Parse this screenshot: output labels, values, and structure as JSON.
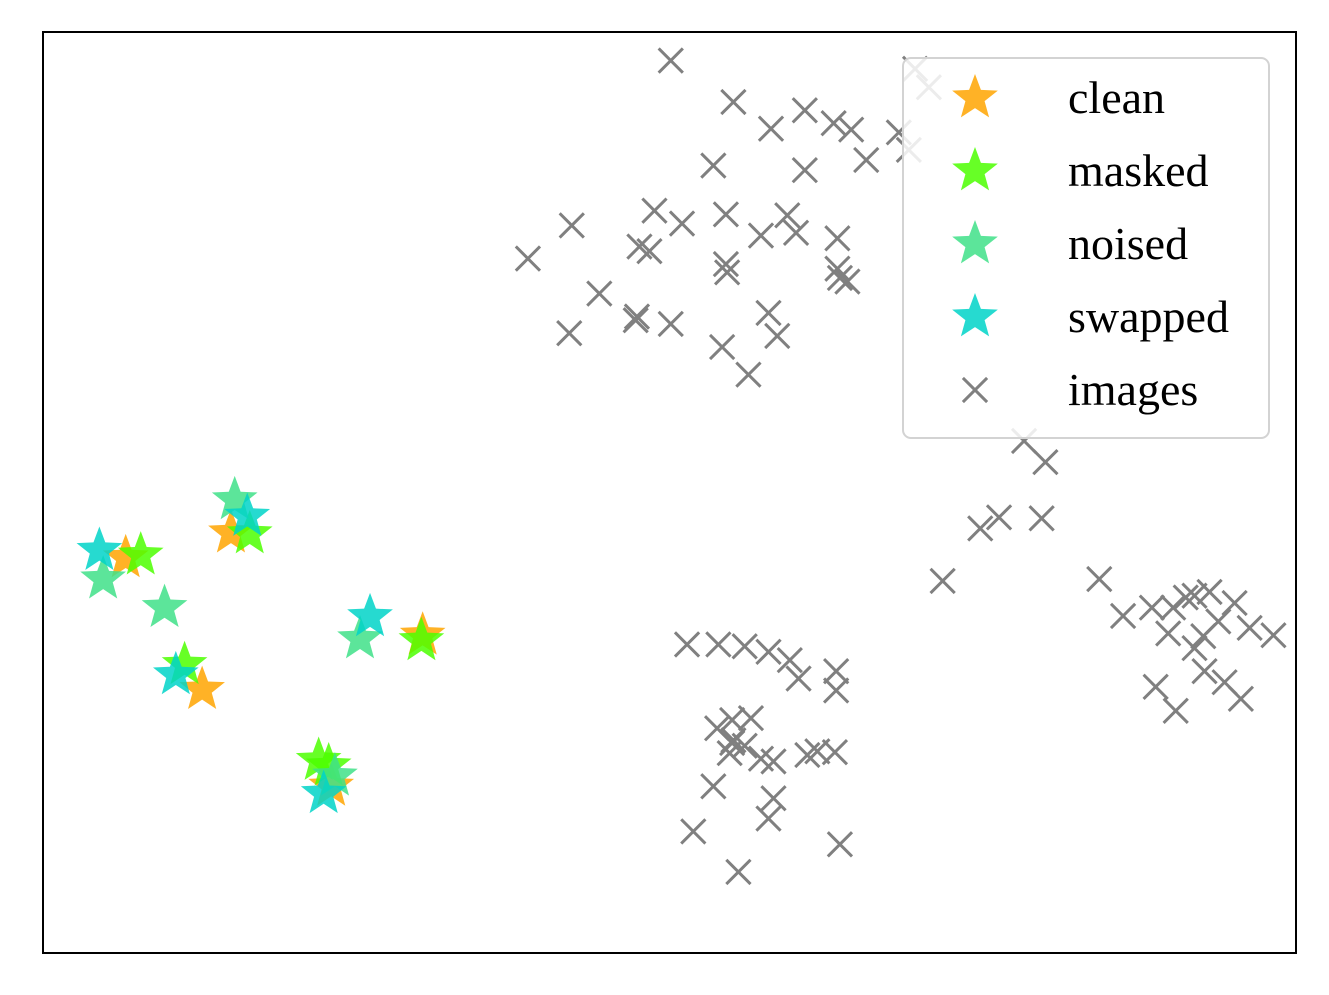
{
  "chart_data": {
    "type": "scatter",
    "title": "",
    "xlabel": "",
    "ylabel": "",
    "xlim": [
      0,
      100
    ],
    "ylim": [
      0,
      100
    ],
    "grid": false,
    "axes_ticks": false,
    "legend": {
      "placement": "top-right"
    },
    "series": [
      {
        "name": "clean",
        "marker": "star",
        "color": "#FFA500",
        "points": [
          [
            6.6,
            42.9
          ],
          [
            15.0,
            45.6
          ],
          [
            12.7,
            28.6
          ],
          [
            30.3,
            34.5
          ],
          [
            23.0,
            18.1
          ]
        ]
      },
      {
        "name": "masked",
        "marker": "star",
        "color": "#4CFF00",
        "points": [
          [
            7.8,
            43.2
          ],
          [
            16.5,
            45.5
          ],
          [
            11.3,
            31.3
          ],
          [
            30.2,
            33.9
          ],
          [
            22.0,
            20.9
          ],
          [
            22.8,
            20.3
          ]
        ]
      },
      {
        "name": "noised",
        "marker": "star",
        "color": "#40E088",
        "points": [
          [
            4.8,
            40.6
          ],
          [
            9.7,
            37.5
          ],
          [
            15.3,
            49.2
          ],
          [
            25.3,
            34.1
          ],
          [
            23.3,
            19.2
          ]
        ]
      },
      {
        "name": "swapped",
        "marker": "star",
        "color": "#00D4C8",
        "points": [
          [
            4.5,
            43.7
          ],
          [
            16.3,
            47.4
          ],
          [
            10.6,
            30.2
          ],
          [
            26.1,
            36.5
          ],
          [
            22.4,
            17.3
          ]
        ]
      },
      {
        "name": "images",
        "marker": "x",
        "color": "#808080",
        "points": [
          [
            50.1,
            96.9
          ],
          [
            55.1,
            92.4
          ],
          [
            58.1,
            89.5
          ],
          [
            60.8,
            91.5
          ],
          [
            60.8,
            85.0
          ],
          [
            69.1,
            87.2
          ],
          [
            68.3,
            89.1
          ],
          [
            65.7,
            86.1
          ],
          [
            53.5,
            85.5
          ],
          [
            48.8,
            80.6
          ],
          [
            47.6,
            76.7
          ],
          [
            42.2,
            79.0
          ],
          [
            48.4,
            76.2
          ],
          [
            44.4,
            71.6
          ],
          [
            38.7,
            75.4
          ],
          [
            42.0,
            67.3
          ],
          [
            47.3,
            68.7
          ],
          [
            51.0,
            79.2
          ],
          [
            54.5,
            74.8
          ],
          [
            57.3,
            77.9
          ],
          [
            54.6,
            73.9
          ],
          [
            47.4,
            69.1
          ],
          [
            54.5,
            80.2
          ],
          [
            59.4,
            80.1
          ],
          [
            57.9,
            69.5
          ],
          [
            56.3,
            62.8
          ],
          [
            58.6,
            67.0
          ],
          [
            54.2,
            65.8
          ],
          [
            50.1,
            68.3
          ],
          [
            60.1,
            78.2
          ],
          [
            63.4,
            77.6
          ],
          [
            63.4,
            74.3
          ],
          [
            63.6,
            73.3
          ],
          [
            64.2,
            72.9
          ],
          [
            80.0,
            53.3
          ],
          [
            78.3,
            55.6
          ],
          [
            74.8,
            46.1
          ],
          [
            76.3,
            47.3
          ],
          [
            79.7,
            47.2
          ],
          [
            71.8,
            40.4
          ],
          [
            84.3,
            40.6
          ],
          [
            86.2,
            36.6
          ],
          [
            88.5,
            37.5
          ],
          [
            90.2,
            37.5
          ],
          [
            91.9,
            38.8
          ],
          [
            91.2,
            38.6
          ],
          [
            93.1,
            39.2
          ],
          [
            89.8,
            34.7
          ],
          [
            91.9,
            33.1
          ],
          [
            95.1,
            38.0
          ],
          [
            92.6,
            34.4
          ],
          [
            93.8,
            36.0
          ],
          [
            96.3,
            35.3
          ],
          [
            98.2,
            34.5
          ],
          [
            92.7,
            30.6
          ],
          [
            88.8,
            28.9
          ],
          [
            90.4,
            26.3
          ],
          [
            94.3,
            29.4
          ],
          [
            95.6,
            27.6
          ],
          [
            51.4,
            33.5
          ],
          [
            53.9,
            33.5
          ],
          [
            56.0,
            33.3
          ],
          [
            57.9,
            32.7
          ],
          [
            59.6,
            31.8
          ],
          [
            60.3,
            29.8
          ],
          [
            63.3,
            30.6
          ],
          [
            63.3,
            28.5
          ],
          [
            53.8,
            24.4
          ],
          [
            55.0,
            25.3
          ],
          [
            55.1,
            23.1
          ],
          [
            56.5,
            25.5
          ],
          [
            55.0,
            22.8
          ],
          [
            56.0,
            22.5
          ],
          [
            54.8,
            21.7
          ],
          [
            57.3,
            21.1
          ],
          [
            61.8,
            21.9
          ],
          [
            61.0,
            21.5
          ],
          [
            63.2,
            21.8
          ],
          [
            58.3,
            20.8
          ],
          [
            53.5,
            18.1
          ],
          [
            58.3,
            16.8
          ],
          [
            51.9,
            13.2
          ],
          [
            57.9,
            14.6
          ],
          [
            63.6,
            11.8
          ],
          [
            55.5,
            8.8
          ],
          [
            69.6,
            96.0
          ],
          [
            63.1,
            90.1
          ],
          [
            64.5,
            89.4
          ],
          [
            70.7,
            94.0
          ]
        ]
      }
    ]
  }
}
